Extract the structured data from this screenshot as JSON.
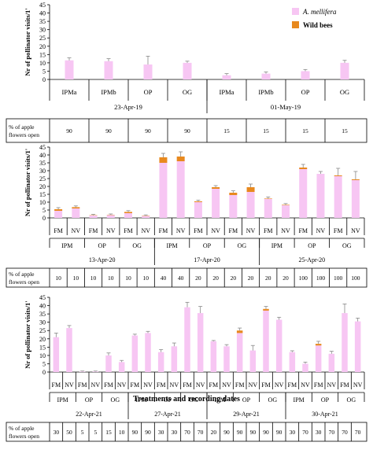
{
  "legend": {
    "items": [
      {
        "name": "A. mellifera",
        "color": "#F7C6F3"
      },
      {
        "name": "Wild bees",
        "color": "#E8891E"
      }
    ]
  },
  "colors": {
    "honeybee": "#F7C6F3",
    "wild": "#E8891E",
    "error": "#888888"
  },
  "footer": {
    "open_label_line1": "% of apple",
    "open_label_line2": "flowers open"
  },
  "x_title": "Treatments and recording dates",
  "chart_data": [
    {
      "type": "bar",
      "stacked": true,
      "ylabel": "Nr of pollinator visits/1'",
      "ylim": [
        0,
        45
      ],
      "yticks": [
        0,
        5,
        10,
        15,
        20,
        25,
        30,
        35,
        40,
        45
      ],
      "categories": [
        "IPMa",
        "IPMb",
        "OP",
        "OG",
        "IPMa",
        "IPMb",
        "OP",
        "OG"
      ],
      "series": [
        {
          "name": "A. mellifera",
          "values": [
            11.5,
            11,
            9,
            10,
            2.5,
            3.5,
            5,
            10
          ]
        },
        {
          "name": "Wild bees",
          "values": [
            0,
            0,
            0,
            0,
            0,
            0,
            0,
            0
          ]
        }
      ],
      "error": [
        1.5,
        1.5,
        5,
        1,
        1,
        1,
        1,
        1.5
      ],
      "date_groups": [
        {
          "label": "23-Apr-19",
          "span": 4
        },
        {
          "label": "01-May-19",
          "span": 4
        }
      ],
      "flowers_open": [
        "90",
        "90",
        "90",
        "90",
        "15",
        "15",
        "15",
        "15"
      ],
      "show_legend": true
    },
    {
      "type": "bar",
      "stacked": true,
      "ylabel": "Nr of pollinator visits/1'",
      "ylim": [
        0,
        45
      ],
      "yticks": [
        0,
        5,
        10,
        15,
        20,
        25,
        30,
        35,
        40,
        45
      ],
      "categories": [
        "FM",
        "NV",
        "FM",
        "NV",
        "FM",
        "NV",
        "FM",
        "NV",
        "FM",
        "NV",
        "FM",
        "NV",
        "FM",
        "NV",
        "FM",
        "NV",
        "FM",
        "NV"
      ],
      "series": [
        {
          "name": "A. mellifera",
          "values": [
            4.5,
            6,
            1.5,
            1.8,
            3,
            1.2,
            35,
            36,
            10,
            18.5,
            14.5,
            16.5,
            12,
            8,
            31,
            28,
            26.5,
            24
          ]
        },
        {
          "name": "Wild bees",
          "values": [
            1,
            0.8,
            0.2,
            0.2,
            0.8,
            0.2,
            3.5,
            3,
            0.5,
            1,
            1.5,
            3,
            0.3,
            0.3,
            1,
            0,
            0.5,
            0.5
          ]
        }
      ],
      "error": [
        1,
        0.8,
        0.5,
        0.5,
        0.8,
        0.5,
        2.5,
        3,
        0.8,
        1,
        1.2,
        2,
        1,
        0.8,
        2,
        1.5,
        4.5,
        5
      ],
      "sub_groups": [
        {
          "label": "IPM",
          "span": 2
        },
        {
          "label": "OP",
          "span": 2
        },
        {
          "label": "OG",
          "span": 2
        },
        {
          "label": "IPM",
          "span": 2
        },
        {
          "label": "OP",
          "span": 2
        },
        {
          "label": "OG",
          "span": 2
        },
        {
          "label": "IPM",
          "span": 2
        },
        {
          "label": "OP",
          "span": 2
        },
        {
          "label": "OG",
          "span": 2
        }
      ],
      "date_groups": [
        {
          "label": "13-Apr-20",
          "span": 6
        },
        {
          "label": "17-Apr-20",
          "span": 6
        },
        {
          "label": "25-Apr-20",
          "span": 6
        }
      ],
      "flowers_open": [
        "10",
        "10",
        "10",
        "10",
        "10",
        "10",
        "40",
        "40",
        "20",
        "20",
        "20",
        "20",
        "20",
        "20",
        "100",
        "100",
        "100",
        "100"
      ],
      "show_legend": false
    },
    {
      "type": "bar",
      "stacked": true,
      "ylabel": "Nr of pollinator visits/1'",
      "ylim": [
        0,
        45
      ],
      "yticks": [
        0,
        5,
        10,
        15,
        20,
        25,
        30,
        35,
        40,
        45
      ],
      "categories": [
        "FM",
        "NV",
        "FM",
        "NV",
        "FM",
        "NV",
        "FM",
        "NV",
        "FM",
        "NV",
        "FM",
        "NV",
        "FM",
        "NV",
        "FM",
        "NV",
        "FM",
        "NV",
        "FM",
        "NV",
        "FM",
        "NV",
        "FM",
        "NV"
      ],
      "series": [
        {
          "name": "A. mellifera",
          "values": [
            21,
            26.5,
            0.3,
            0.3,
            10,
            6,
            22,
            23.5,
            12,
            15.5,
            39,
            35.5,
            18.5,
            15.5,
            23.5,
            13,
            37,
            31.5,
            12,
            5,
            16,
            11,
            35.5,
            30.5
          ]
        },
        {
          "name": "Wild bees",
          "values": [
            0,
            0,
            0,
            0,
            0,
            0,
            0,
            0,
            0,
            0,
            0,
            0,
            0,
            0,
            1.5,
            0,
            1,
            0,
            0,
            0,
            1,
            0,
            0,
            0
          ]
        }
      ],
      "error": [
        2.5,
        1.5,
        0.3,
        0.3,
        1.5,
        1,
        0.8,
        1,
        1.5,
        2,
        3,
        4,
        0.5,
        1,
        1.5,
        3,
        1.5,
        1.5,
        0.8,
        1,
        1.5,
        1.5,
        5.5,
        2
      ],
      "sub_groups": [
        {
          "label": "IPM",
          "span": 2
        },
        {
          "label": "OP",
          "span": 2
        },
        {
          "label": "OG",
          "span": 2
        },
        {
          "label": "IPM",
          "span": 2
        },
        {
          "label": "OP",
          "span": 2
        },
        {
          "label": "OG",
          "span": 2
        },
        {
          "label": "IPM",
          "span": 2
        },
        {
          "label": "OP",
          "span": 2
        },
        {
          "label": "OG",
          "span": 2
        },
        {
          "label": "IPM",
          "span": 2
        },
        {
          "label": "OP",
          "span": 2
        },
        {
          "label": "OG",
          "span": 2
        }
      ],
      "date_groups": [
        {
          "label": "22-Apr-21",
          "span": 6
        },
        {
          "label": "27-Apr-21",
          "span": 6
        },
        {
          "label": "29-Apr-21",
          "span": 6
        },
        {
          "label": "30-Apr-21",
          "span": 6
        }
      ],
      "flowers_open": [
        "30",
        "50",
        "5",
        "5",
        "15",
        "10",
        "90",
        "90",
        "30",
        "30",
        "70",
        "70",
        "20",
        "90",
        "90",
        "90",
        "90",
        "90",
        "30",
        "70",
        "30",
        "70",
        "70",
        "70"
      ],
      "show_legend": false
    }
  ]
}
